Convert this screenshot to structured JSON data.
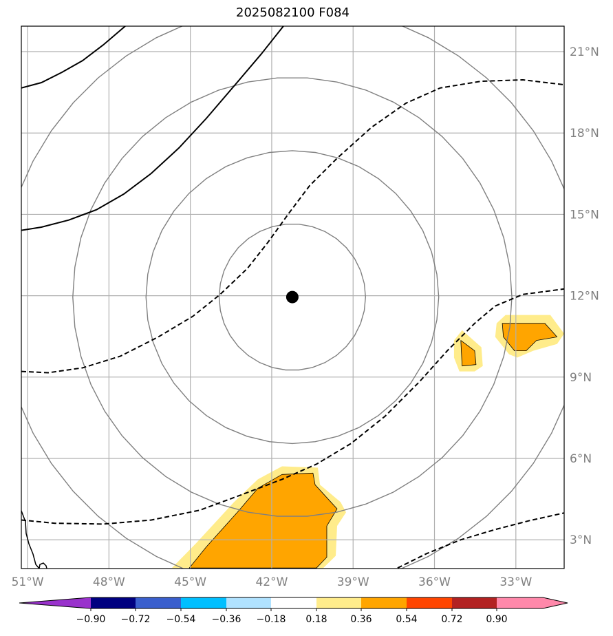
{
  "title": "2025082100 F084",
  "chart_data": {
    "type": "map",
    "title": "2025082100 F084",
    "extent": {
      "lon": [
        -51.23,
        -31.22
      ],
      "lat": [
        1.94,
        21.94
      ]
    },
    "lon_ticks": [
      -51,
      -48,
      -45,
      -42,
      -39,
      -36,
      -33
    ],
    "lon_tick_labels": [
      "51°W",
      "48°W",
      "45°W",
      "42°W",
      "39°W",
      "36°W",
      "33°W"
    ],
    "lat_ticks": [
      3,
      6,
      9,
      12,
      15,
      18,
      21
    ],
    "lat_tick_labels": [
      "3°N",
      "6°N",
      "9°N",
      "12°N",
      "15°N",
      "18°N",
      "21°N"
    ],
    "grid": true,
    "center": {
      "lon": -41.24,
      "lat": 11.95
    },
    "range_rings_km": [
      300,
      600,
      900,
      1200
    ],
    "solid_contours": [
      [
        [
          -51.23,
          19.66
        ],
        [
          -50.49,
          19.86
        ],
        [
          -49.73,
          20.24
        ],
        [
          -48.97,
          20.67
        ],
        [
          -48.21,
          21.25
        ],
        [
          -47.4,
          21.94
        ]
      ],
      [
        [
          -51.23,
          14.41
        ],
        [
          -50.49,
          14.53
        ],
        [
          -49.48,
          14.79
        ],
        [
          -48.46,
          15.17
        ],
        [
          -47.45,
          15.75
        ],
        [
          -46.44,
          16.51
        ],
        [
          -45.42,
          17.45
        ],
        [
          -44.41,
          18.54
        ],
        [
          -43.39,
          19.73
        ],
        [
          -42.38,
          20.92
        ],
        [
          -41.57,
          21.94
        ]
      ]
    ],
    "dashed_contours": [
      [
        [
          -51.23,
          9.21
        ],
        [
          -50.24,
          9.16
        ],
        [
          -48.97,
          9.34
        ],
        [
          -47.58,
          9.77
        ],
        [
          -46.18,
          10.48
        ],
        [
          -44.91,
          11.24
        ],
        [
          -43.9,
          12.05
        ],
        [
          -42.89,
          13.01
        ],
        [
          -42.13,
          13.98
        ],
        [
          -41.37,
          15.04
        ],
        [
          -40.6,
          16.06
        ],
        [
          -39.59,
          17.07
        ],
        [
          -38.32,
          18.21
        ],
        [
          -37.05,
          19.1
        ],
        [
          -35.79,
          19.66
        ],
        [
          -34.27,
          19.91
        ],
        [
          -32.74,
          19.96
        ],
        [
          -31.22,
          19.78
        ]
      ],
      [
        [
          -51.23,
          3.73
        ],
        [
          -49.99,
          3.61
        ],
        [
          -48.21,
          3.58
        ],
        [
          -46.44,
          3.73
        ],
        [
          -44.66,
          4.09
        ],
        [
          -43.14,
          4.65
        ],
        [
          -41.62,
          5.23
        ],
        [
          -40.35,
          5.79
        ],
        [
          -39.08,
          6.55
        ],
        [
          -37.82,
          7.56
        ],
        [
          -36.55,
          8.83
        ],
        [
          -35.53,
          9.97
        ],
        [
          -34.52,
          10.98
        ],
        [
          -33.76,
          11.62
        ],
        [
          -32.74,
          12.05
        ],
        [
          -31.22,
          12.25
        ]
      ],
      [
        [
          -37.36,
          1.96
        ],
        [
          -36.29,
          2.49
        ],
        [
          -35.03,
          3.0
        ],
        [
          -33.76,
          3.38
        ],
        [
          -32.49,
          3.71
        ],
        [
          -31.22,
          3.99
        ]
      ]
    ],
    "shaded_regions": [
      {
        "level": [
          0.18,
          0.36
        ],
        "polygon": [
          [
            -45.68,
            1.96
          ],
          [
            -44.79,
            2.87
          ],
          [
            -43.39,
            4.39
          ],
          [
            -42.51,
            5.23
          ],
          [
            -41.62,
            5.71
          ],
          [
            -40.3,
            5.66
          ],
          [
            -40.22,
            5.03
          ],
          [
            -39.46,
            4.39
          ],
          [
            -39.26,
            4.01
          ],
          [
            -39.59,
            3.51
          ],
          [
            -39.64,
            2.41
          ],
          [
            -40.1,
            1.96
          ]
        ]
      },
      {
        "level": [
          0.36,
          0.54
        ],
        "polygon": [
          [
            -45.04,
            1.96
          ],
          [
            -44.41,
            2.74
          ],
          [
            -43.27,
            4.01
          ],
          [
            -42.51,
            4.9
          ],
          [
            -41.62,
            5.41
          ],
          [
            -40.48,
            5.46
          ],
          [
            -40.4,
            5.03
          ],
          [
            -39.59,
            4.14
          ],
          [
            -39.97,
            3.51
          ],
          [
            -39.97,
            2.36
          ],
          [
            -40.35,
            1.96
          ]
        ]
      },
      {
        "level": [
          0.18,
          0.36
        ],
        "polygon": [
          [
            -35.28,
            10.35
          ],
          [
            -34.98,
            10.73
          ],
          [
            -34.27,
            10.1
          ],
          [
            -34.22,
            9.41
          ],
          [
            -34.52,
            9.21
          ],
          [
            -35.08,
            9.21
          ],
          [
            -35.28,
            9.72
          ]
        ]
      },
      {
        "level": [
          0.36,
          0.54
        ],
        "polygon": [
          [
            -35.03,
            10.35
          ],
          [
            -34.52,
            9.97
          ],
          [
            -34.47,
            9.46
          ],
          [
            -34.98,
            9.41
          ]
        ]
      },
      {
        "level": [
          0.18,
          0.36
        ],
        "polygon": [
          [
            -33.71,
            10.98
          ],
          [
            -33.38,
            11.29
          ],
          [
            -31.73,
            11.29
          ],
          [
            -31.22,
            10.6
          ],
          [
            -31.48,
            10.22
          ],
          [
            -32.36,
            9.97
          ],
          [
            -32.95,
            9.72
          ],
          [
            -33.25,
            9.84
          ],
          [
            -33.76,
            10.48
          ]
        ]
      },
      {
        "level": [
          0.36,
          0.54
        ],
        "polygon": [
          [
            -33.5,
            10.98
          ],
          [
            -31.93,
            10.98
          ],
          [
            -31.48,
            10.48
          ],
          [
            -32.24,
            10.35
          ],
          [
            -32.62,
            9.97
          ],
          [
            -33.05,
            9.97
          ],
          [
            -33.46,
            10.48
          ]
        ]
      }
    ],
    "colorbar": {
      "boundaries": [
        -0.9,
        -0.72,
        -0.54,
        -0.36,
        -0.18,
        0.18,
        0.36,
        0.54,
        0.72,
        0.9
      ],
      "tick_labels": [
        "−0.90",
        "−0.72",
        "−0.54",
        "−0.36",
        "−0.18",
        "0.18",
        "0.36",
        "0.54",
        "0.72",
        "0.90"
      ],
      "colors": [
        "#9932cc",
        "#000080",
        "#3a5fcd",
        "#00bfff",
        "#b0e2ff",
        "#ffffff",
        "#ffec8b",
        "#ffa500",
        "#ff4500",
        "#b22222",
        "#ff88aa"
      ],
      "extend": "both",
      "placement": "bottom"
    }
  }
}
